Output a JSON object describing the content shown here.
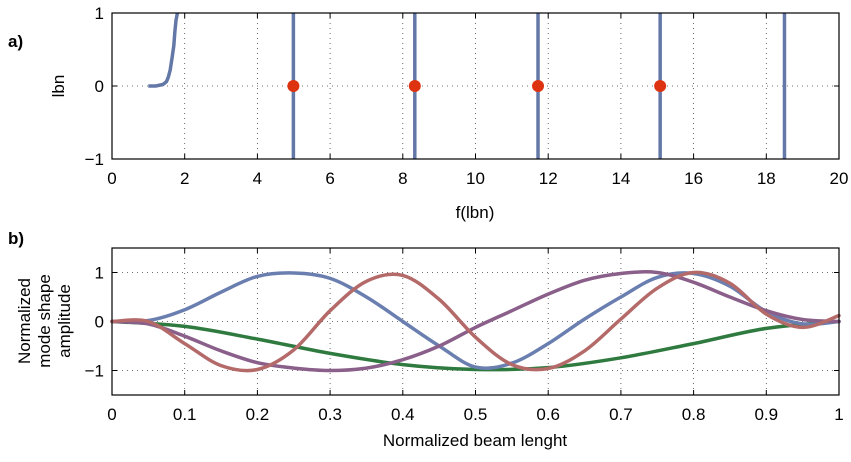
{
  "chart_data": [
    {
      "panel_label": "a)",
      "type": "line",
      "xlabel": "f(lbn)",
      "ylabel": "lbn",
      "xlim": [
        0,
        20
      ],
      "ylim": [
        -1,
        1
      ],
      "xticks": [
        "0",
        "2",
        "4",
        "6",
        "8",
        "10",
        "12",
        "14",
        "16",
        "18",
        "20"
      ],
      "yticks": [
        "1",
        "0",
        "−1"
      ],
      "grid": true,
      "colors": {
        "lines": "#6478a8",
        "markers": "#dd3311"
      },
      "curve": {
        "x": [
          1.0,
          1.2,
          1.4,
          1.5,
          1.55,
          1.6,
          1.65,
          1.7,
          1.73,
          1.76,
          1.8
        ],
        "y": [
          0.0,
          0.0,
          0.02,
          0.06,
          0.12,
          0.22,
          0.38,
          0.55,
          0.75,
          0.9,
          1.0
        ]
      },
      "vertical_lines": [
        4.99,
        8.33,
        11.72,
        15.08,
        18.5
      ],
      "roots": [
        4.99,
        8.33,
        11.72,
        15.08
      ]
    },
    {
      "panel_label": "b)",
      "type": "line",
      "xlabel": "Normalized beam lenght",
      "ylabel": [
        "Normalized",
        "mode shape",
        "amplitude"
      ],
      "xlim": [
        0,
        1
      ],
      "ylim": [
        -1.5,
        1.5
      ],
      "xticks": [
        "0",
        "0.1",
        "0.2",
        "0.3",
        "0.4",
        "0.5",
        "0.6",
        "0.7",
        "0.8",
        "0.9",
        "1"
      ],
      "yticks": [
        "1",
        "0",
        "−1"
      ],
      "grid": true,
      "series": [
        {
          "color": "#2f7a3f",
          "x": [
            0,
            0.1,
            0.2,
            0.3,
            0.4,
            0.5,
            0.6,
            0.7,
            0.8,
            0.9,
            1.0
          ],
          "y": [
            0,
            -0.1,
            -0.36,
            -0.65,
            -0.88,
            -0.98,
            -0.94,
            -0.74,
            -0.45,
            -0.14,
            0
          ]
        },
        {
          "color": "#6a7fb0",
          "x": [
            0,
            0.05,
            0.1,
            0.15,
            0.2,
            0.25,
            0.3,
            0.35,
            0.4,
            0.45,
            0.5,
            0.55,
            0.6,
            0.65,
            0.7,
            0.75,
            0.8,
            0.85,
            0.9,
            0.95,
            1.0
          ],
          "y": [
            0,
            0.02,
            0.24,
            0.6,
            0.92,
            0.99,
            0.88,
            0.5,
            0.0,
            -0.5,
            -0.93,
            -0.85,
            -0.45,
            0.05,
            0.5,
            0.9,
            0.98,
            0.72,
            0.2,
            -0.05,
            0
          ]
        },
        {
          "color": "#8a5f8a",
          "x": [
            0,
            0.05,
            0.1,
            0.15,
            0.2,
            0.25,
            0.3,
            0.35,
            0.4,
            0.45,
            0.5,
            0.55,
            0.6,
            0.65,
            0.7,
            0.75,
            0.8,
            0.85,
            0.9,
            0.95,
            1.0
          ],
          "y": [
            0,
            -0.05,
            -0.3,
            -0.6,
            -0.84,
            -0.95,
            -1.0,
            -0.95,
            -0.78,
            -0.5,
            -0.12,
            0.22,
            0.56,
            0.84,
            0.98,
            1.0,
            0.8,
            0.5,
            0.22,
            0.04,
            0
          ]
        },
        {
          "color": "#b56a6a",
          "x": [
            0,
            0.05,
            0.1,
            0.15,
            0.2,
            0.25,
            0.3,
            0.35,
            0.4,
            0.45,
            0.5,
            0.55,
            0.6,
            0.65,
            0.7,
            0.75,
            0.8,
            0.85,
            0.9,
            0.95,
            1.0
          ],
          "y": [
            0,
            0.0,
            -0.45,
            -0.9,
            -0.98,
            -0.58,
            0.22,
            0.82,
            0.94,
            0.45,
            -0.32,
            -0.88,
            -0.96,
            -0.6,
            0.05,
            0.68,
            1.0,
            0.78,
            0.15,
            -0.12,
            0.12
          ]
        }
      ]
    }
  ]
}
